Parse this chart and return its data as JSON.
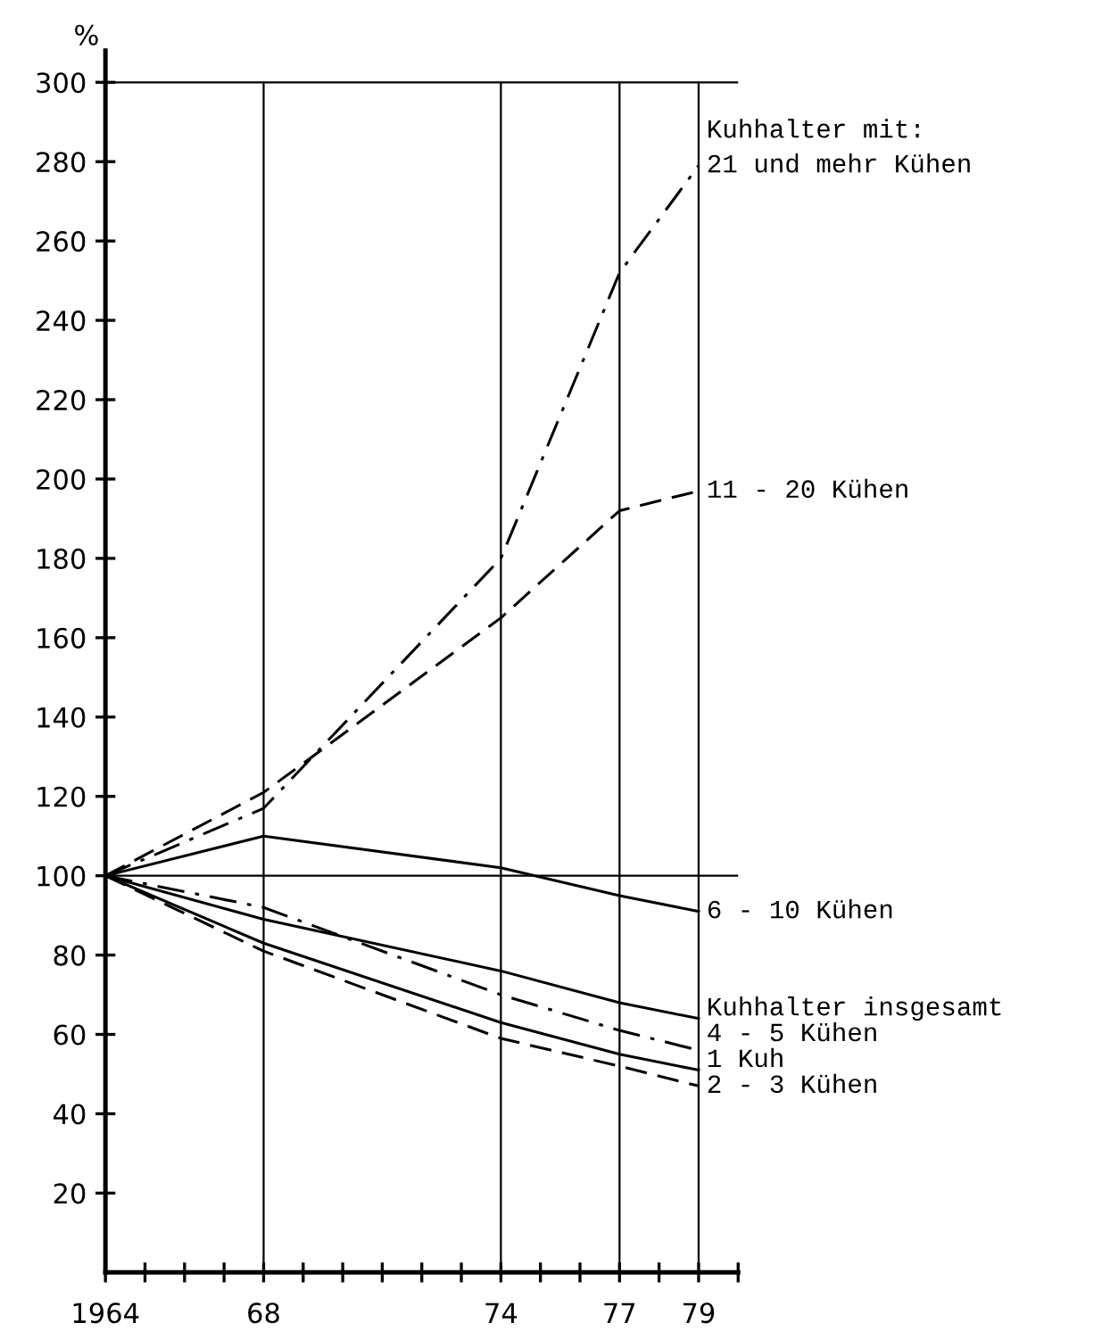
{
  "chart_data": {
    "type": "line",
    "ylabel": "%",
    "x": [
      1964,
      1968,
      1974,
      1977,
      1979
    ],
    "series": [
      {
        "name": "21 und mehr Kühen",
        "color": "#000000",
        "line_style": "dashdot",
        "values": [
          100,
          117,
          180,
          252,
          279
        ]
      },
      {
        "name": "11 - 20 Kühen",
        "color": "#000000",
        "line_style": "dashed",
        "values": [
          100,
          121,
          165,
          192,
          197
        ]
      },
      {
        "name": "6 - 10 Kühen",
        "color": "#000000",
        "line_style": "solid",
        "values": [
          100,
          110,
          102,
          95,
          91
        ]
      },
      {
        "name": "Kuhhalter insgesamt",
        "color": "#000000",
        "line_style": "solid",
        "values": [
          100,
          89,
          76,
          68,
          64
        ]
      },
      {
        "name": "4 - 5 Kühen",
        "color": "#000000",
        "line_style": "dashdot",
        "values": [
          100,
          92,
          70,
          61,
          56
        ]
      },
      {
        "name": "1 Kuh",
        "color": "#000000",
        "line_style": "solid",
        "values": [
          100,
          83,
          63,
          55,
          51
        ]
      },
      {
        "name": "2 - 3 Kühen",
        "color": "#000000",
        "line_style": "dashed",
        "values": [
          100,
          81,
          59,
          52,
          47
        ]
      }
    ],
    "annotations": [
      "Kuhhalter mit:"
    ],
    "ref_lines": [
      {
        "axis": "x",
        "value": 1968,
        "color": "#000000"
      },
      {
        "axis": "x",
        "value": 1974,
        "color": "#000000"
      },
      {
        "axis": "x",
        "value": 1977,
        "color": "#000000"
      },
      {
        "axis": "x",
        "value": 1979,
        "color": "#000000"
      },
      {
        "axis": "y",
        "value": 100,
        "color": "#000000"
      },
      {
        "axis": "y",
        "value": 300,
        "color": "#000000"
      }
    ],
    "xlim": [
      1964,
      1980
    ],
    "ylim": [
      0,
      308
    ],
    "xticks": [
      {
        "value": 1964,
        "label": "1964"
      },
      {
        "value": 1965,
        "label": null
      },
      {
        "value": 1966,
        "label": null
      },
      {
        "value": 1967,
        "label": null
      },
      {
        "value": 1968,
        "label": "68"
      },
      {
        "value": 1969,
        "label": null
      },
      {
        "value": 1970,
        "label": null
      },
      {
        "value": 1971,
        "label": null
      },
      {
        "value": 1972,
        "label": null
      },
      {
        "value": 1973,
        "label": null
      },
      {
        "value": 1974,
        "label": "74"
      },
      {
        "value": 1975,
        "label": null
      },
      {
        "value": 1976,
        "label": null
      },
      {
        "value": 1977,
        "label": "77"
      },
      {
        "value": 1978,
        "label": null
      },
      {
        "value": 1979,
        "label": "79"
      },
      {
        "value": 1980,
        "label": null
      }
    ],
    "yticks": [
      20,
      40,
      60,
      80,
      100,
      120,
      140,
      160,
      180,
      200,
      220,
      240,
      260,
      280,
      300
    ],
    "grid": false,
    "legend": false
  }
}
